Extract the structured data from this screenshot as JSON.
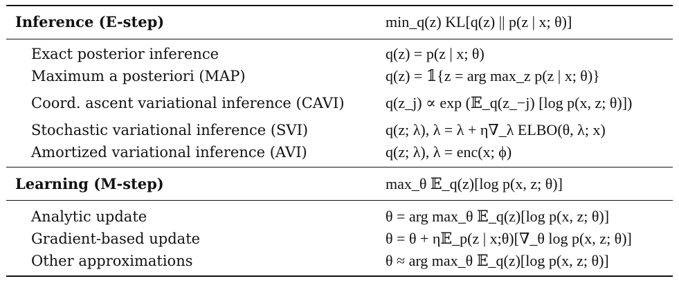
{
  "sections": [
    {
      "header": {
        "label": "Inference (E-step)",
        "formula": "min_q(z) KL[q(z) || p(z | x; θ)]"
      },
      "rows": [
        {
          "label": "Exact posterior inference",
          "formula": "q(z) = p(z | x; θ)"
        },
        {
          "label": "Maximum a posteriori (MAP)",
          "formula": "q(z) = 𝟙{z = arg max_z p(z | x; θ)}"
        },
        {
          "label": "Coord. ascent variational inference (CAVI)",
          "formula": "q(z_j) ∝ exp (𝔼_q(z_−j) [log p(x, z; θ)])"
        },
        {
          "label": "Stochastic variational inference (SVI)",
          "formula": "q(z; λ),  λ = λ + η∇_λ ELBO(θ, λ; x)"
        },
        {
          "label": "Amortized variational inference (AVI)",
          "formula": "q(z; λ),  λ = enc(x; ϕ)"
        }
      ]
    },
    {
      "header": {
        "label": "Learning (M-step)",
        "formula": "max_θ 𝔼_q(z)[log p(x, z; θ)]"
      },
      "rows": [
        {
          "label": "Analytic update",
          "formula": "θ = arg max_θ 𝔼_q(z)[log p(x, z; θ)]"
        },
        {
          "label": "Gradient-based update",
          "formula": "θ = θ + η𝔼_p(z | x;θ)[∇_θ log p(x, z; θ)]"
        },
        {
          "label": "Other approximations",
          "formula": "θ ≈ arg max_θ 𝔼_q(z)[log p(x, z; θ)]"
        }
      ]
    }
  ]
}
